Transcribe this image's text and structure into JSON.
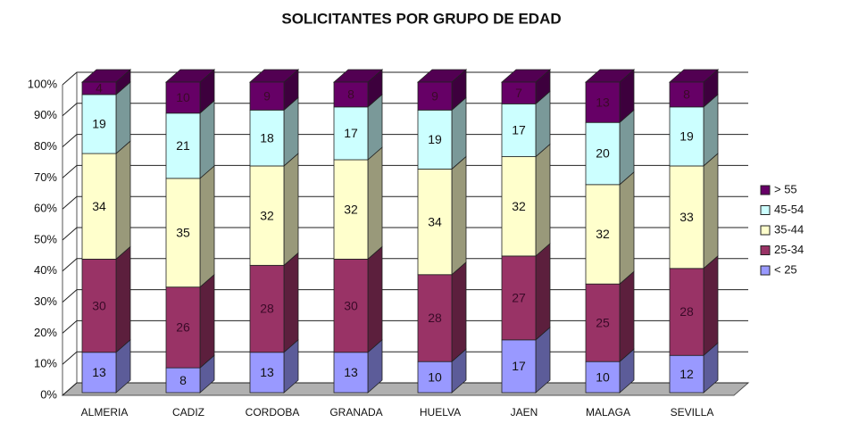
{
  "chart_data": {
    "type": "stacked-bar-3d",
    "title": "SOLICITANTES POR GRUPO DE EDAD",
    "categories": [
      "ALMERIA",
      "CADIZ",
      "CORDOBA",
      "GRANADA",
      "HUELVA",
      "JAEN",
      "MALAGA",
      "SEVILLA"
    ],
    "series": [
      {
        "name": "< 25",
        "color": "#9999ff",
        "values": [
          13,
          8,
          13,
          13,
          10,
          17,
          10,
          12
        ]
      },
      {
        "name": "25-34",
        "color": "#993366",
        "values": [
          30,
          26,
          28,
          30,
          28,
          27,
          25,
          28
        ]
      },
      {
        "name": "35-44",
        "color": "#ffffcc",
        "values": [
          34,
          35,
          32,
          32,
          34,
          32,
          32,
          33
        ]
      },
      {
        "name": "45-54",
        "color": "#ccffff",
        "values": [
          19,
          21,
          18,
          17,
          19,
          17,
          20,
          19
        ]
      },
      {
        "name": "> 55",
        "color": "#660066",
        "values": [
          4,
          10,
          9,
          8,
          9,
          7,
          13,
          8
        ]
      }
    ],
    "ylim": [
      0,
      100
    ],
    "yticks": [
      {
        "value": 0,
        "label": "0%"
      },
      {
        "value": 10,
        "label": "10%"
      },
      {
        "value": 20,
        "label": "20%"
      },
      {
        "value": 30,
        "label": "30%"
      },
      {
        "value": 40,
        "label": "40%"
      },
      {
        "value": 50,
        "label": "50%"
      },
      {
        "value": 60,
        "label": "60%"
      },
      {
        "value": 70,
        "label": "70%"
      },
      {
        "value": 80,
        "label": "80%"
      },
      {
        "value": 90,
        "label": "90%"
      },
      {
        "value": 100,
        "label": "100%"
      }
    ],
    "grid": true,
    "legend": "right"
  }
}
